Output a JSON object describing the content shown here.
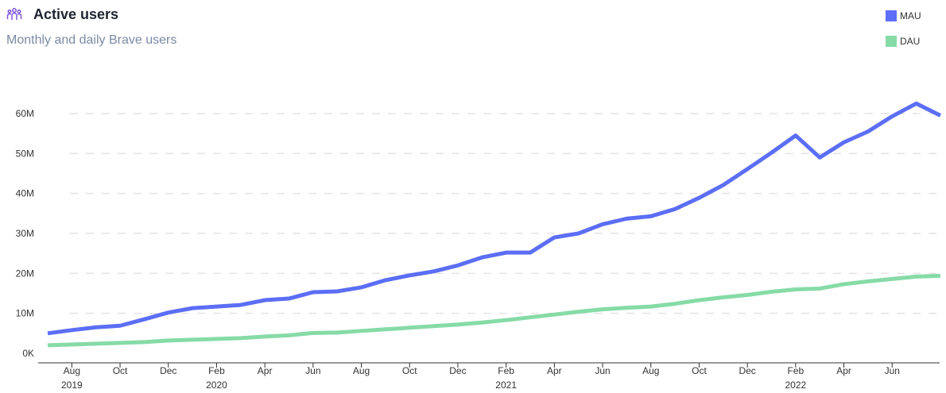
{
  "header": {
    "title": "Active users",
    "subtitle": "Monthly and daily Brave users",
    "icon": "users-group-icon"
  },
  "colors": {
    "mau": "#5b6ef5",
    "dau": "#86dba7",
    "icon": "#7f55e0",
    "grid": "#e3e3e3"
  },
  "chart_data": {
    "type": "line",
    "title": "Active users",
    "subtitle": "Monthly and daily Brave users",
    "xlabel": "",
    "ylabel": "",
    "ylim": [
      0,
      60000000
    ],
    "y_ticks": [
      {
        "value": 0,
        "label": "0K"
      },
      {
        "value": 10000000,
        "label": "10M"
      },
      {
        "value": 20000000,
        "label": "20M"
      },
      {
        "value": 30000000,
        "label": "30M"
      },
      {
        "value": 40000000,
        "label": "40M"
      },
      {
        "value": 50000000,
        "label": "50M"
      },
      {
        "value": 60000000,
        "label": "60M"
      }
    ],
    "grid": true,
    "legend_position": "top-right",
    "x_ticks": [
      {
        "label": "Aug",
        "year": "2019"
      },
      {
        "label": "Oct",
        "year": ""
      },
      {
        "label": "Dec",
        "year": ""
      },
      {
        "label": "Feb",
        "year": "2020"
      },
      {
        "label": "Apr",
        "year": ""
      },
      {
        "label": "Jun",
        "year": ""
      },
      {
        "label": "Aug",
        "year": ""
      },
      {
        "label": "Oct",
        "year": ""
      },
      {
        "label": "Dec",
        "year": ""
      },
      {
        "label": "Feb",
        "year": "2021"
      },
      {
        "label": "Apr",
        "year": ""
      },
      {
        "label": "Jun",
        "year": ""
      },
      {
        "label": "Aug",
        "year": ""
      },
      {
        "label": "Oct",
        "year": ""
      },
      {
        "label": "Dec",
        "year": ""
      },
      {
        "label": "Feb",
        "year": "2022"
      },
      {
        "label": "Apr",
        "year": ""
      },
      {
        "label": "Jun",
        "year": ""
      }
    ],
    "x": [
      "2019-07",
      "2019-08",
      "2019-09",
      "2019-10",
      "2019-11",
      "2019-12",
      "2020-01",
      "2020-02",
      "2020-03",
      "2020-04",
      "2020-05",
      "2020-06",
      "2020-07",
      "2020-08",
      "2020-09",
      "2020-10",
      "2020-11",
      "2020-12",
      "2021-01",
      "2021-02",
      "2021-03",
      "2021-04",
      "2021-05",
      "2021-06",
      "2021-07",
      "2021-08",
      "2021-09",
      "2021-10",
      "2021-11",
      "2021-12",
      "2022-01",
      "2022-02",
      "2022-03",
      "2022-04",
      "2022-05",
      "2022-06",
      "2022-07",
      "2022-08"
    ],
    "series": [
      {
        "name": "MAU",
        "values": [
          5000000,
          5800000,
          6500000,
          6900000,
          8500000,
          10200000,
          11300000,
          11700000,
          12100000,
          13300000,
          13700000,
          15300000,
          15500000,
          16500000,
          18300000,
          19500000,
          20500000,
          22000000,
          24000000,
          25200000,
          25200000,
          29000000,
          30000000,
          32300000,
          33700000,
          34300000,
          36100000,
          38900000,
          42100000,
          46100000,
          50200000,
          54500000,
          49000000,
          52800000,
          55500000,
          59300000,
          62500000,
          59500000
        ]
      },
      {
        "name": "DAU",
        "values": [
          2000000,
          2200000,
          2400000,
          2600000,
          2800000,
          3200000,
          3400000,
          3600000,
          3800000,
          4200000,
          4500000,
          5100000,
          5200000,
          5600000,
          6000000,
          6400000,
          6800000,
          7200000,
          7700000,
          8300000,
          9000000,
          9700000,
          10400000,
          11000000,
          11400000,
          11700000,
          12400000,
          13300000,
          14000000,
          14600000,
          15400000,
          16000000,
          16200000,
          17300000,
          18000000,
          18600000,
          19200000,
          19400000
        ]
      }
    ]
  }
}
